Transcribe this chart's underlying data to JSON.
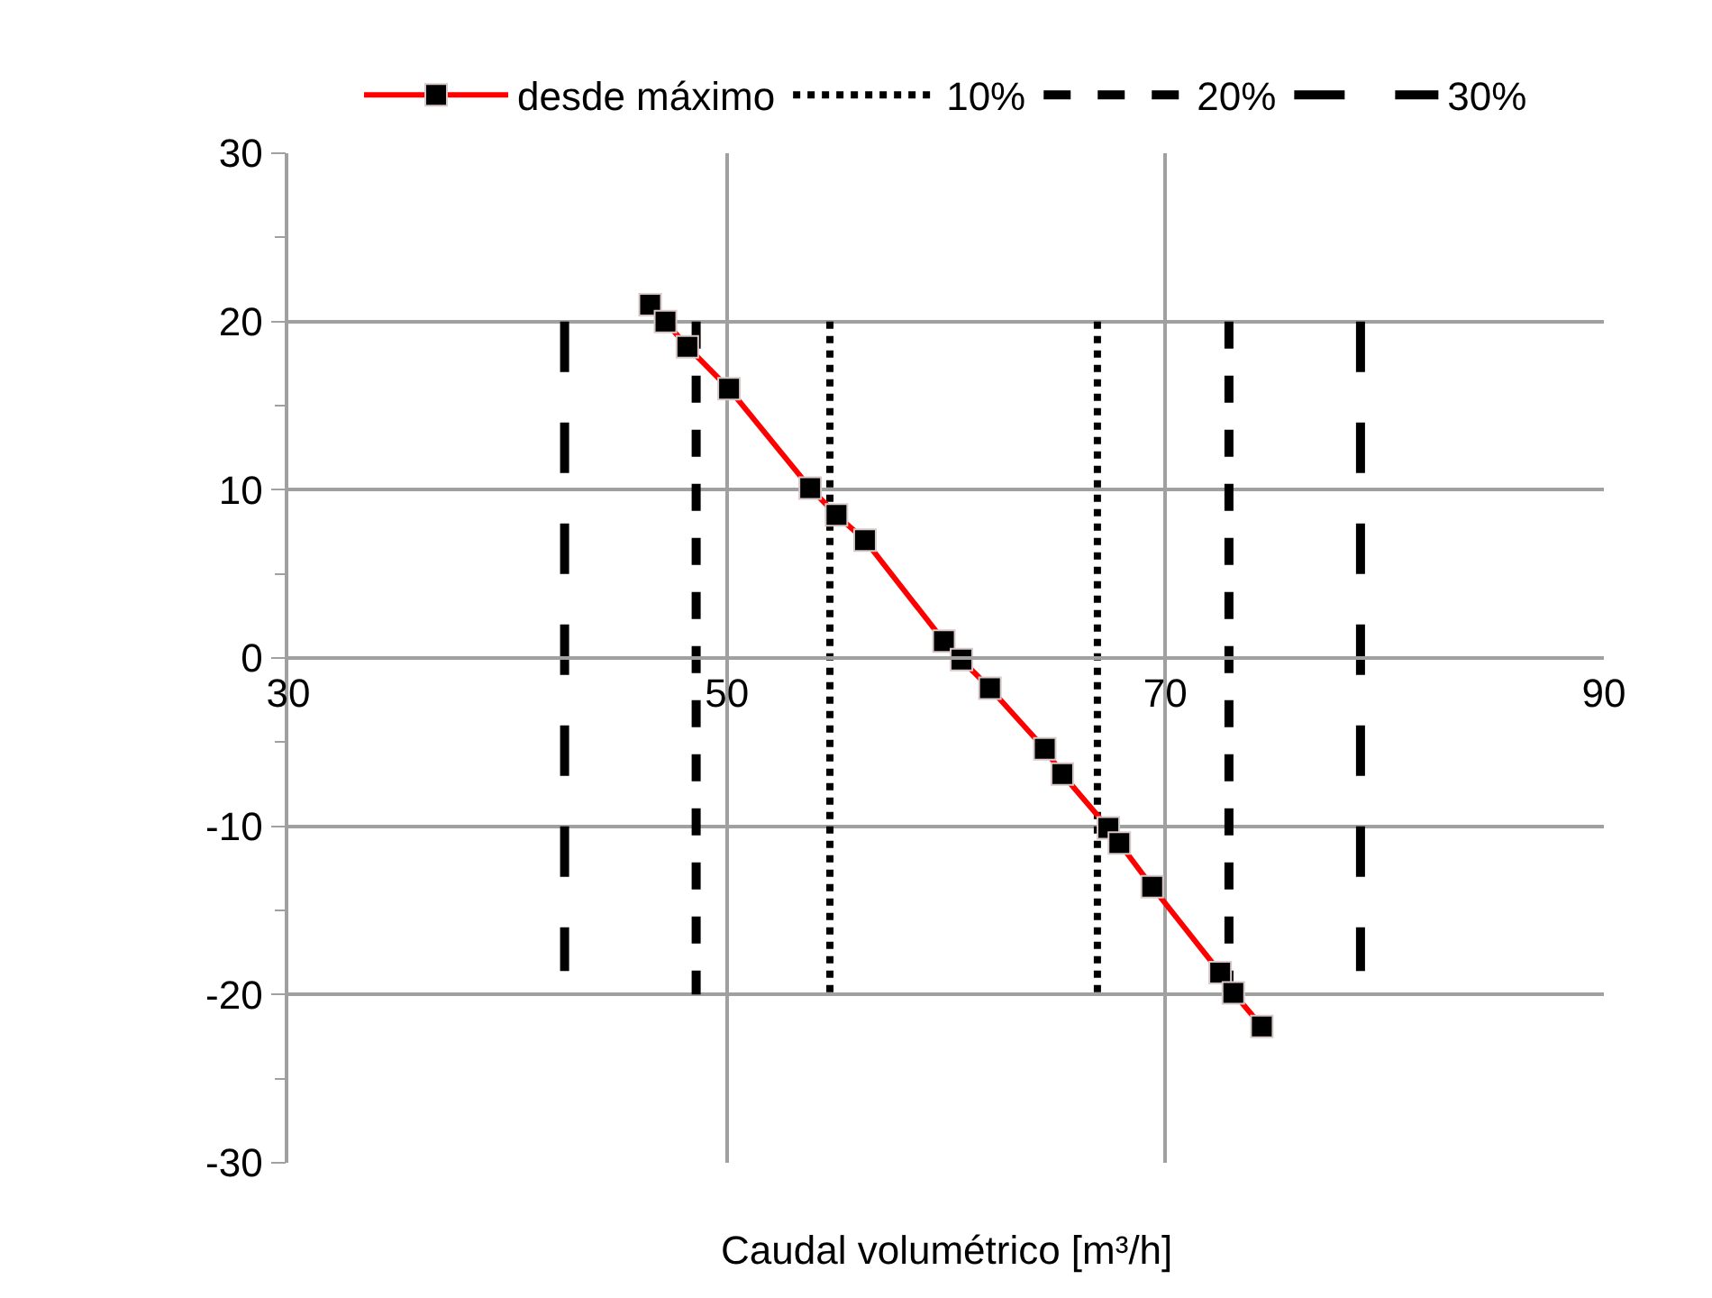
{
  "chart_data": {
    "type": "line",
    "xlabel": "Caudal volumétrico [m³/h]",
    "xlim": [
      30,
      90
    ],
    "xticks": [
      30,
      50,
      70,
      90
    ],
    "ylim": [
      -30,
      30
    ],
    "yticks": [
      -30,
      -20,
      -10,
      0,
      10,
      20,
      30
    ],
    "grid": true,
    "legend": "top",
    "series": [
      {
        "name": "desde máximo",
        "color": "#ff0000",
        "marker": "square",
        "line_style": "solid",
        "x": [
          46.5,
          47.2,
          48.2,
          50.1,
          53.8,
          55.0,
          56.3,
          59.9,
          60.7,
          62.0,
          64.5,
          65.3,
          67.4,
          67.9,
          69.4,
          72.5,
          73.1,
          74.4
        ],
        "values": [
          21,
          20,
          18.5,
          16,
          10.1,
          8.5,
          7,
          1,
          -0.1,
          -1.8,
          -5.4,
          -6.9,
          -10.1,
          -11,
          -13.6,
          -18.7,
          -19.9,
          -21.9
        ]
      },
      {
        "name": "10%",
        "color": "#000000",
        "marker": "none",
        "line_style": "dotted",
        "x": [
          54.7,
          54.7,
          null,
          66.9,
          66.9
        ],
        "values": [
          20,
          -20,
          null,
          20,
          -20
        ]
      },
      {
        "name": "20%",
        "color": "#000000",
        "marker": "none",
        "line_style": "dashed",
        "x": [
          48.6,
          48.6,
          null,
          72.9,
          72.9
        ],
        "values": [
          20,
          -20,
          null,
          20,
          -20
        ]
      },
      {
        "name": "30%",
        "color": "#000000",
        "marker": "none",
        "line_style": "dashed",
        "x": [
          42.6,
          42.6,
          null,
          78.9,
          78.9
        ],
        "values": [
          20,
          -18.6,
          null,
          20,
          -18.6
        ]
      }
    ]
  }
}
